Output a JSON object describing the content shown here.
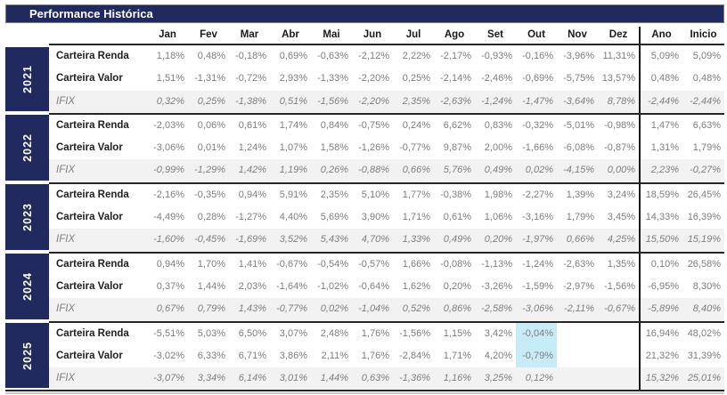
{
  "title": "Performance Histórica",
  "colors": {
    "navy": "#202A5E",
    "value_gray": "#7f7f7f",
    "label_dark": "#1f1f1f",
    "ifix_row_bg": "#f2f2f2",
    "highlight_cyan": "#C8EBF8",
    "divider_dark": "#262626"
  },
  "chart_data": {
    "type": "table",
    "title": "Performance Histórica",
    "columns": [
      "Jan",
      "Fev",
      "Mar",
      "Abr",
      "Mai",
      "Jun",
      "Jul",
      "Ago",
      "Set",
      "Out",
      "Nov",
      "Dez",
      "Ano",
      "Inicio"
    ],
    "row_groups": [
      {
        "year": "2021",
        "rows": [
          {
            "label": "Carteira Renda",
            "values": [
              "1,18%",
              "0,48%",
              "-0,18%",
              "0,69%",
              "-0,63%",
              "-2,12%",
              "2,22%",
              "-2,17%",
              "-0,93%",
              "-0,16%",
              "-3,96%",
              "11,31%",
              "5,09%",
              "5,09%"
            ]
          },
          {
            "label": "Carteira Valor",
            "values": [
              "1,51%",
              "-1,31%",
              "-0,72%",
              "2,93%",
              "-1,33%",
              "-2,20%",
              "0,25%",
              "-2,14%",
              "-2,46%",
              "-0,69%",
              "-5,75%",
              "13,57%",
              "0,48%",
              "0,48%"
            ]
          },
          {
            "label": "IFIX",
            "values": [
              "0,32%",
              "0,25%",
              "-1,38%",
              "0,51%",
              "-1,56%",
              "-2,20%",
              "2,35%",
              "-2,63%",
              "-1,24%",
              "-1,47%",
              "-3,64%",
              "8,78%",
              "-2,44%",
              "-2,44%"
            ]
          }
        ]
      },
      {
        "year": "2022",
        "rows": [
          {
            "label": "Carteira Renda",
            "values": [
              "-2,03%",
              "0,06%",
              "0,61%",
              "1,74%",
              "0,84%",
              "-0,75%",
              "0,24%",
              "6,62%",
              "0,83%",
              "-0,32%",
              "-5,01%",
              "-0,98%",
              "1,47%",
              "6,63%"
            ]
          },
          {
            "label": "Carteira Valor",
            "values": [
              "-3,06%",
              "0,01%",
              "1,24%",
              "1,07%",
              "1,58%",
              "-1,26%",
              "-0,77%",
              "9,87%",
              "2,00%",
              "-1,66%",
              "-6,08%",
              "-0,87%",
              "1,31%",
              "1,79%"
            ]
          },
          {
            "label": "IFIX",
            "values": [
              "-0,99%",
              "-1,29%",
              "1,42%",
              "1,19%",
              "0,26%",
              "-0,88%",
              "0,66%",
              "5,76%",
              "0,49%",
              "0,02%",
              "-4,15%",
              "0,00%",
              "2,23%",
              "-0,27%"
            ]
          }
        ]
      },
      {
        "year": "2023",
        "rows": [
          {
            "label": "Carteira Renda",
            "values": [
              "-2,16%",
              "-0,35%",
              "0,94%",
              "5,91%",
              "2,35%",
              "5,10%",
              "1,77%",
              "-0,38%",
              "1,98%",
              "-2,27%",
              "1,39%",
              "3,24%",
              "18,59%",
              "26,45%"
            ]
          },
          {
            "label": "Carteira Valor",
            "values": [
              "-4,49%",
              "0,28%",
              "-1,27%",
              "4,40%",
              "5,69%",
              "3,90%",
              "1,71%",
              "0,61%",
              "1,06%",
              "-3,16%",
              "1,79%",
              "3,45%",
              "14,33%",
              "16,39%"
            ]
          },
          {
            "label": "IFIX",
            "values": [
              "-1,60%",
              "-0,45%",
              "-1,69%",
              "3,52%",
              "5,43%",
              "4,70%",
              "1,33%",
              "0,49%",
              "0,20%",
              "-1,97%",
              "0,66%",
              "4,25%",
              "15,50%",
              "15,19%"
            ]
          }
        ]
      },
      {
        "year": "2024",
        "rows": [
          {
            "label": "Carteira Renda",
            "values": [
              "0,94%",
              "1,70%",
              "1,41%",
              "-0,67%",
              "-0,54%",
              "-0,57%",
              "1,66%",
              "-0,08%",
              "-1,13%",
              "-1,24%",
              "-2,63%",
              "1,35%",
              "0,10%",
              "26,58%"
            ]
          },
          {
            "label": "Carteira Valor",
            "values": [
              "0,37%",
              "1,44%",
              "2,03%",
              "-1,64%",
              "-1,02%",
              "-0,64%",
              "1,62%",
              "0,20%",
              "-3,26%",
              "-1,59%",
              "-2,97%",
              "-1,56%",
              "-6,95%",
              "8,30%"
            ]
          },
          {
            "label": "IFIX",
            "values": [
              "0,67%",
              "0,79%",
              "1,43%",
              "-0,77%",
              "0,02%",
              "-1,04%",
              "0,52%",
              "0,86%",
              "-2,58%",
              "-3,06%",
              "-2,11%",
              "-0,67%",
              "-5,89%",
              "8,40%"
            ]
          }
        ]
      },
      {
        "year": "2025",
        "rows": [
          {
            "label": "Carteira Renda",
            "values": [
              "-5,51%",
              "5,03%",
              "6,50%",
              "3,07%",
              "2,48%",
              "1,76%",
              "-1,56%",
              "1,15%",
              "3,42%",
              "-0,04%",
              "",
              "",
              "16,94%",
              "48,02%"
            ]
          },
          {
            "label": "Carteira Valor",
            "values": [
              "-3,02%",
              "6,33%",
              "6,71%",
              "3,86%",
              "2,11%",
              "1,76%",
              "-2,84%",
              "1,71%",
              "4,20%",
              "-0,79%",
              "",
              "",
              "21,32%",
              "31,39%"
            ]
          },
          {
            "label": "IFIX",
            "values": [
              "-3,07%",
              "3,34%",
              "6,14%",
              "3,01%",
              "1,44%",
              "0,63%",
              "-1,36%",
              "1,16%",
              "3,25%",
              "0,12%",
              "",
              "",
              "15,32%",
              "25,01%"
            ]
          }
        ]
      }
    ],
    "highlights": [
      {
        "year": "2025",
        "row": "Carteira Renda",
        "column": "Out"
      },
      {
        "year": "2025",
        "row": "Carteira Valor",
        "column": "Out"
      }
    ]
  }
}
